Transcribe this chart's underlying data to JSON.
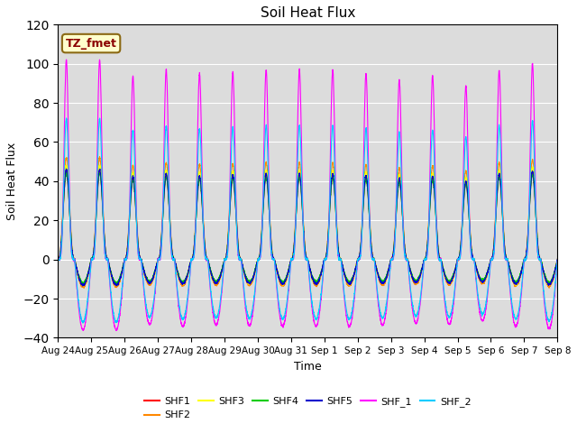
{
  "title": "Soil Heat Flux",
  "xlabel": "Time",
  "ylabel": "Soil Heat Flux",
  "ylim": [
    -40,
    120
  ],
  "yticks": [
    -40,
    -20,
    0,
    20,
    40,
    60,
    80,
    100,
    120
  ],
  "xtick_labels": [
    "Aug 24",
    "Aug 25",
    "Aug 26",
    "Aug 27",
    "Aug 28",
    "Aug 29",
    "Aug 30",
    "Aug 31",
    "Sep 1",
    "Sep 2",
    "Sep 3",
    "Sep 4",
    "Sep 5",
    "Sep 6",
    "Sep 7",
    "Sep 8"
  ],
  "annotation_text": "TZ_fmet",
  "annotation_bbox_facecolor": "#ffffcc",
  "annotation_bbox_edgecolor": "#8B6914",
  "series_colors": {
    "SHF1": "#ff0000",
    "SHF2": "#ff8800",
    "SHF3": "#ffff00",
    "SHF4": "#00cc00",
    "SHF5": "#0000cc",
    "SHF_1": "#ff00ff",
    "SHF_2": "#00ccff"
  },
  "background_color": "#dcdcdc",
  "n_days": 15,
  "points_per_day": 288
}
